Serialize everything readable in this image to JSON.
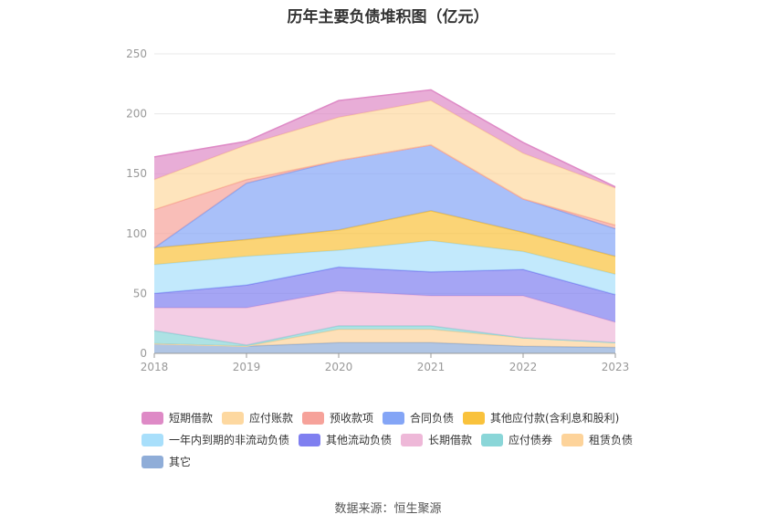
{
  "chart_data": {
    "type": "area",
    "title": "历年主要负债堆积图（亿元）",
    "categories": [
      "2018",
      "2019",
      "2020",
      "2021",
      "2022",
      "2023"
    ],
    "ylim": [
      0,
      250
    ],
    "yticks": [
      0,
      50,
      100,
      150,
      200,
      250
    ],
    "grid": true,
    "stacked": true,
    "legend_position": "bottom",
    "series": [
      {
        "name": "其它",
        "color": "#8fadd8",
        "values": [
          8,
          6,
          9,
          9,
          6,
          5
        ]
      },
      {
        "name": "租赁负债",
        "color": "#fdd39a",
        "values": [
          0,
          0,
          11,
          11,
          7,
          4
        ]
      },
      {
        "name": "应付债券",
        "color": "#8ad6d8",
        "values": [
          11,
          1,
          3,
          3,
          0,
          0
        ]
      },
      {
        "name": "长期借款",
        "color": "#eeb8d8",
        "values": [
          19,
          31,
          29,
          25,
          35,
          17
        ]
      },
      {
        "name": "其他流动负债",
        "color": "#7f7ff0",
        "values": [
          12,
          19,
          20,
          20,
          22,
          23
        ]
      },
      {
        "name": "一年内到期的非流动负债",
        "color": "#a8dffb",
        "values": [
          24,
          24,
          14,
          26,
          15,
          17
        ]
      },
      {
        "name": "其他应付款(含利息和股利)",
        "color": "#f9c23c",
        "values": [
          14,
          14,
          17,
          25,
          16,
          15
        ]
      },
      {
        "name": "合同负债",
        "color": "#84a5f6",
        "values": [
          0,
          47,
          58,
          55,
          28,
          23
        ]
      },
      {
        "name": "预收款项",
        "color": "#f6a29a",
        "values": [
          32,
          3,
          0,
          0,
          0,
          3
        ]
      },
      {
        "name": "应付账款",
        "color": "#fdd8a0",
        "values": [
          25,
          29,
          36,
          37,
          38,
          31
        ]
      },
      {
        "name": "短期借款",
        "color": "#de8ac6",
        "values": [
          19,
          3,
          14,
          9,
          9,
          1
        ]
      }
    ],
    "legend_order": [
      "短期借款",
      "应付账款",
      "预收款项",
      "合同负债",
      "其他应付款(含利息和股利)",
      "一年内到期的非流动负债",
      "其他流动负债",
      "长期借款",
      "应付债券",
      "租赁负债",
      "其它"
    ]
  },
  "source_text": "数据来源：恒生聚源"
}
